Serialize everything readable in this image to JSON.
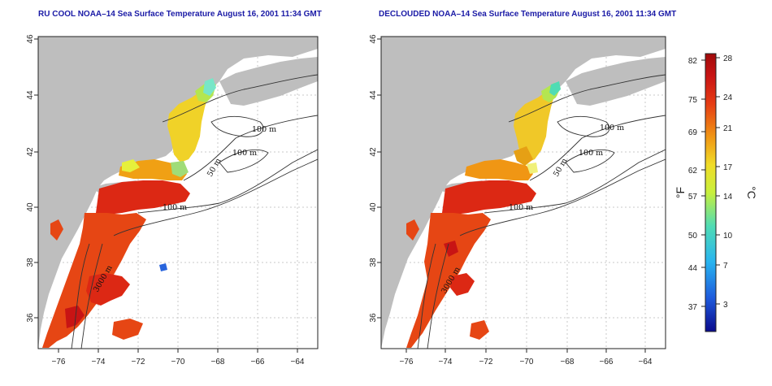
{
  "panels": [
    {
      "title": "RU COOL NOAA–14 Sea Surface Temperature August 16, 2001 11:34 GMT",
      "contour_labels": [
        "100 m",
        "100 m",
        "50 m",
        "100 m",
        "3000 m"
      ]
    },
    {
      "title": "DECLOUDED NOAA–14 Sea Surface Temperature August 16, 2001 11:34 GMT",
      "contour_labels": [
        "100 m",
        "100 m",
        "50 m",
        "100 m",
        "3000 m"
      ]
    }
  ],
  "axes": {
    "x_ticks": [
      "−76",
      "−74",
      "−72",
      "−70",
      "−68",
      "−66",
      "−64"
    ],
    "y_ticks": [
      "36",
      "38",
      "40",
      "42",
      "44",
      "46"
    ]
  },
  "colorbar": {
    "fahrenheit_ticks": [
      "82",
      "75",
      "69",
      "62",
      "57",
      "50",
      "44",
      "37"
    ],
    "celsius_ticks": [
      "28",
      "24",
      "21",
      "17",
      "14",
      "10",
      "7",
      "3"
    ],
    "unit_f": "°F",
    "unit_c": "°C",
    "colors": [
      "#0a0a8c",
      "#1e5adc",
      "#28b4f0",
      "#50dcb4",
      "#c8f03c",
      "#f0dc28",
      "#f09614",
      "#e63c14",
      "#c81414",
      "#a00a0a"
    ]
  },
  "colors": {
    "land": "#bebebe",
    "ocean": "#ffffff",
    "grid": "#c8c8c8",
    "title": "#1a1aa6"
  }
}
